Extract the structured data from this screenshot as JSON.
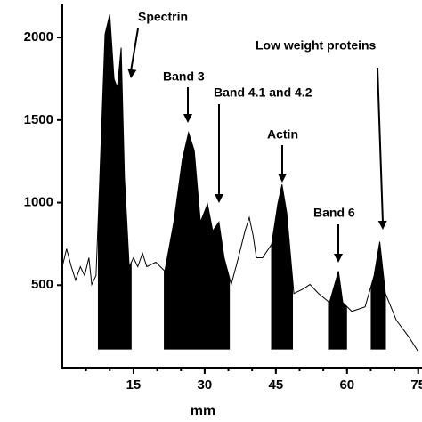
{
  "chart_data": {
    "type": "line",
    "x_label": "mm",
    "x": [
      0,
      0.9,
      1.9,
      2.8,
      3.8,
      4.7,
      5.6,
      6.2,
      7.1,
      7.9,
      9.0,
      10,
      10.9,
      11.6,
      12.4,
      13.1,
      14.1,
      15,
      15.9,
      16.9,
      17.8,
      19.7,
      21.6,
      23.5,
      25.3,
      26.6,
      27.8,
      29.1,
      30.6,
      31.7,
      33,
      34.1,
      35.6,
      37.1,
      38.5,
      39.4,
      40.2,
      40.9,
      42.2,
      44.1,
      45.4,
      46.3,
      47.3,
      48.8,
      50.7,
      52.2,
      54,
      56.3,
      58.2,
      59.1,
      61,
      63.8,
      65.7,
      66.9,
      68.1,
      70.4,
      73.2,
      75
    ],
    "values": [
      612,
      720,
      612,
      530,
      612,
      558,
      666,
      504,
      558,
      1153,
      2020,
      2140,
      1749,
      1695,
      1938,
      1153,
      612,
      666,
      612,
      693,
      612,
      639,
      585,
      882,
      1261,
      1424,
      1316,
      882,
      991,
      828,
      882,
      666,
      504,
      666,
      828,
      910,
      801,
      666,
      666,
      747,
      991,
      1110,
      937,
      449,
      476,
      504,
      449,
      395,
      585,
      395,
      341,
      368,
      558,
      763,
      449,
      287,
      179,
      97
    ],
    "color": "#000000",
    "filled_ranges": [
      [
        7.5,
        14.6
      ],
      [
        21.4,
        35.3
      ],
      [
        44,
        48.6
      ],
      [
        56,
        60
      ],
      [
        65,
        68.2
      ]
    ],
    "fill_base": 110,
    "xlim": [
      0,
      75.8
    ],
    "ylim": [
      0,
      2200
    ],
    "xticks": [
      15,
      30,
      45,
      60,
      75
    ],
    "yticks": [
      500,
      1000,
      1500,
      2000
    ],
    "annotations": [
      "Spectrin",
      "Band 3",
      "Band 4.1 and 4.2",
      "Actin",
      "Band 6",
      "Low weight proteins"
    ]
  }
}
